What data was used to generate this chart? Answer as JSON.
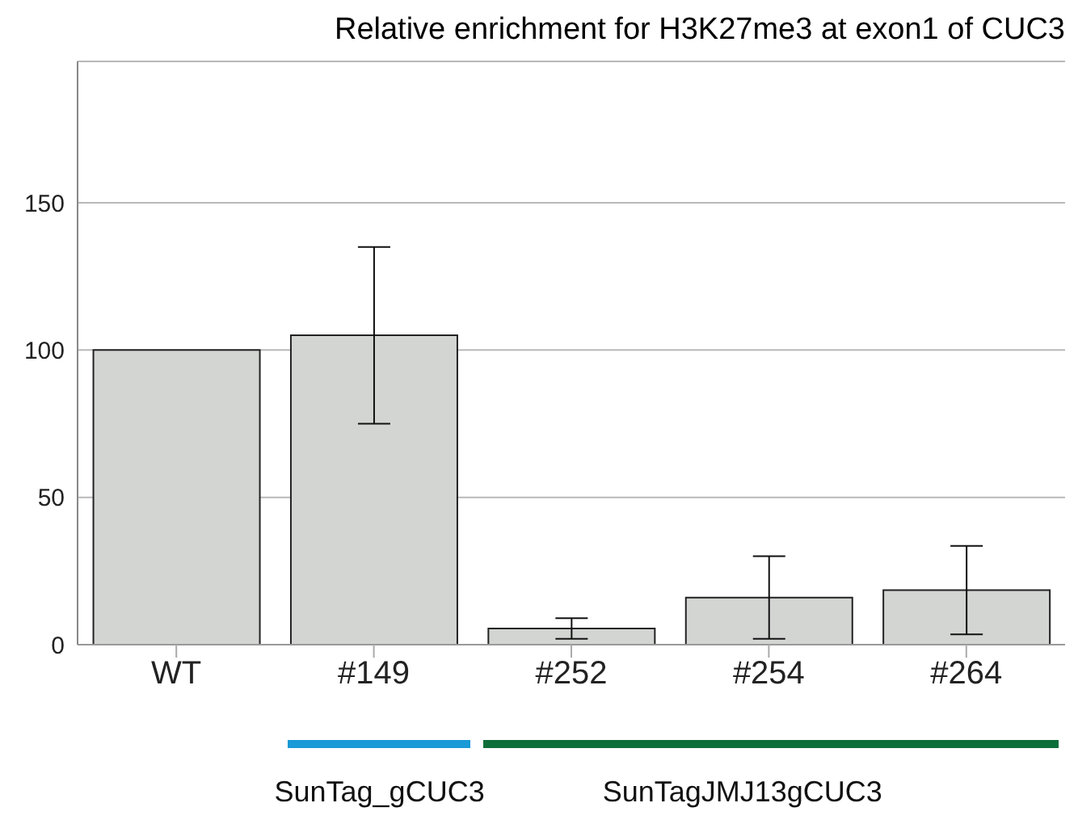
{
  "chart_data": {
    "type": "bar",
    "title": "Relative enrichment for H3K27me3 at exon1 of CUC3",
    "categories": [
      "WT",
      "#149",
      "#252",
      "#254",
      "#264"
    ],
    "values": [
      100,
      105,
      5.5,
      16,
      18.5
    ],
    "errors": [
      null,
      30,
      3.5,
      14,
      15
    ],
    "color": "#d3d5d3",
    "ylim": [
      0,
      198
    ],
    "yticks": [
      0,
      50,
      100,
      150
    ],
    "grid": "y",
    "annotations": [
      "SunTag_gCUC3",
      "SunTagJMJ13gCUC3"
    ]
  }
}
